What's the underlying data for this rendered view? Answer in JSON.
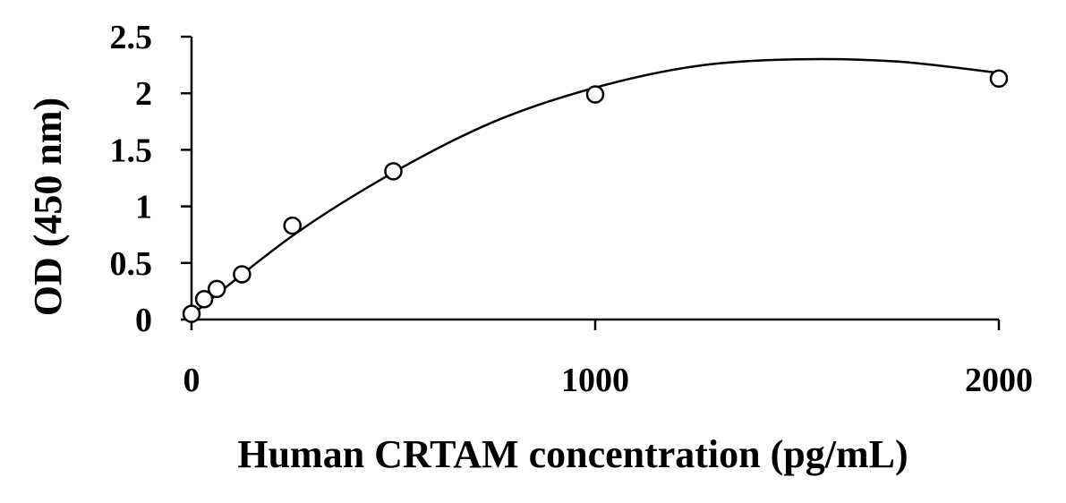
{
  "chart_data": {
    "type": "scatter",
    "xlabel": "Human CRTAM concentration (pg/mL)",
    "ylabel": "OD (450 nm)",
    "xlim": [
      0,
      2000
    ],
    "ylim": [
      0,
      2.5
    ],
    "x_ticks": [
      0,
      1000,
      2000
    ],
    "x_tick_labels": [
      "0",
      "1000",
      "2000"
    ],
    "y_ticks": [
      0,
      0.5,
      1,
      1.5,
      2,
      2.5
    ],
    "y_tick_labels": [
      "0",
      "0.5",
      "1",
      "1.5",
      "2",
      "2.5"
    ],
    "grid": false,
    "legend": false,
    "series": [
      {
        "marker": "open-circle",
        "x": [
          0,
          31.25,
          62.5,
          125,
          250,
          500,
          1000,
          2000
        ],
        "y": [
          0.05,
          0.18,
          0.27,
          0.4,
          0.83,
          1.31,
          1.99,
          2.13
        ]
      }
    ],
    "fit": {
      "type": "polynomial-2",
      "x": [
        0,
        250,
        500,
        750,
        1000,
        1250,
        1500,
        1750,
        2000
      ],
      "y": [
        0.04,
        0.74,
        1.3,
        1.75,
        2.05,
        2.24,
        2.3,
        2.28,
        2.18
      ]
    }
  }
}
